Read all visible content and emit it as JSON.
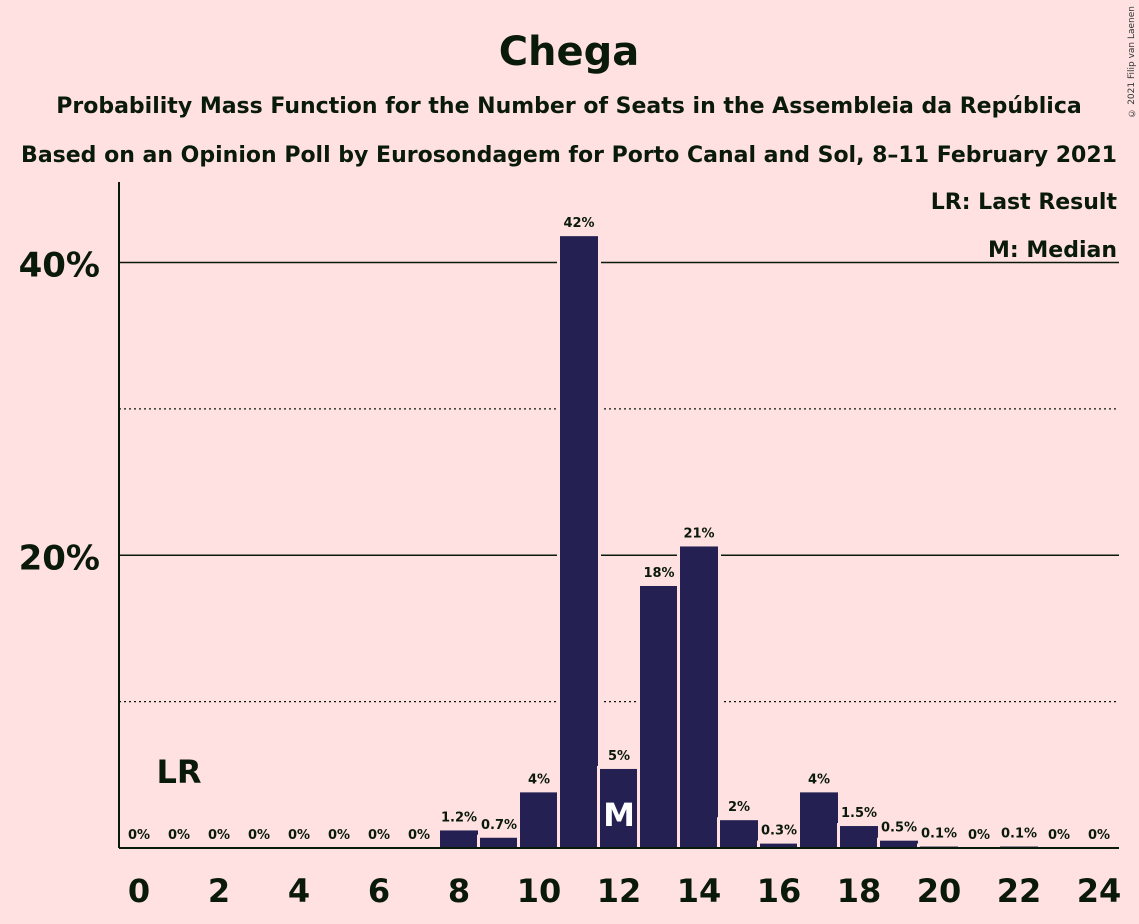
{
  "chart_data": {
    "type": "bar",
    "title": "Chega",
    "subtitle": "Probability Mass Function for the Number of Seats in the Assembleia da República",
    "subtitle2": "Based on an Opinion Poll by Eurosondagem for Porto Canal and Sol, 8–11 February 2021",
    "categories": [
      0,
      1,
      2,
      3,
      4,
      5,
      6,
      7,
      8,
      9,
      10,
      11,
      12,
      13,
      14,
      15,
      16,
      17,
      18,
      19,
      20,
      21,
      22,
      23,
      24
    ],
    "values": [
      0,
      0,
      0,
      0,
      0,
      0,
      0,
      0,
      1.2,
      0.7,
      3.8,
      41.8,
      5.4,
      17.9,
      20.6,
      1.9,
      0.3,
      3.8,
      1.5,
      0.5,
      0.1,
      0,
      0.1,
      0,
      0
    ],
    "value_labels": [
      "0%",
      "0%",
      "0%",
      "0%",
      "0%",
      "0%",
      "0%",
      "0%",
      "1.2%",
      "0.7%",
      "4%",
      "42%",
      "5%",
      "18%",
      "21%",
      "2%",
      "0.3%",
      "4%",
      "1.5%",
      "0.5%",
      "0.1%",
      "0%",
      "0.1%",
      "0%",
      "0%"
    ],
    "x_tick_labels": [
      "0",
      "2",
      "4",
      "6",
      "8",
      "10",
      "12",
      "14",
      "16",
      "18",
      "20",
      "22",
      "24"
    ],
    "y_tick_labels": [
      "20%",
      "40%"
    ],
    "ylim": [
      0,
      45.5
    ],
    "grid": {
      "major": [
        20,
        40
      ],
      "minor": [
        10,
        30
      ]
    },
    "last_result_seat": 1,
    "median_seat": 12,
    "lr_marker": "LR",
    "median_marker": "M",
    "legend": [
      "LR: Last Result",
      "M: Median"
    ],
    "legend_position": "top-right",
    "colors": {
      "background": "#FFE1E1",
      "bar": "#242052",
      "text": "#0A1A0A",
      "axis": "#0A1A0A"
    }
  },
  "copyright": "© 2021 Filip van Laenen"
}
